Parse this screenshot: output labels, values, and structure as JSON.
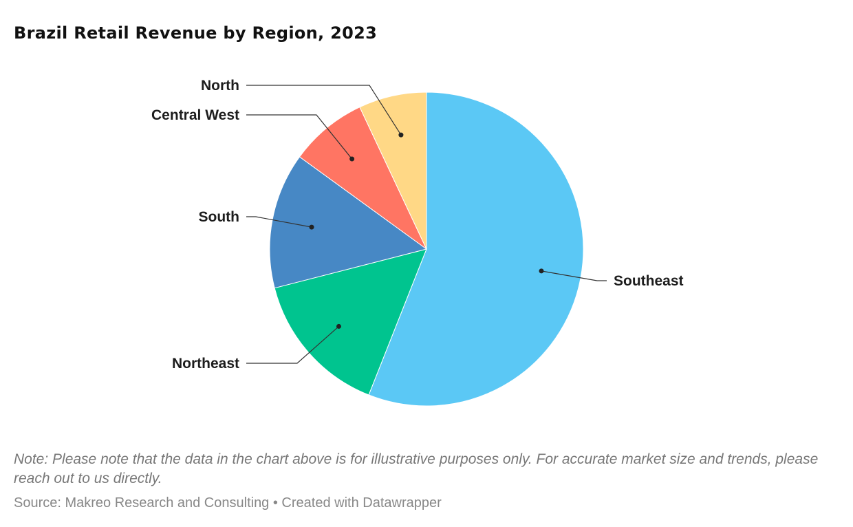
{
  "chart_data": {
    "type": "pie",
    "title": "Brazil Retail Revenue by Region, 2023",
    "unit": "percent share (estimated)",
    "slices": [
      {
        "label": "Southeast",
        "value": 56,
        "color": "#5bc8f5"
      },
      {
        "label": "Northeast",
        "value": 15,
        "color": "#00c48f"
      },
      {
        "label": "South",
        "value": 14,
        "color": "#4788c5"
      },
      {
        "label": "Central West",
        "value": 8,
        "color": "#ff7563"
      },
      {
        "label": "North",
        "value": 7,
        "color": "#ffd886"
      }
    ]
  },
  "note": "Note: Please note that the data in the chart above is for illustrative purposes only. For accurate market size and trends, please reach out to us directly.",
  "source": "Source: Makreo Research and Consulting • Created with Datawrapper"
}
